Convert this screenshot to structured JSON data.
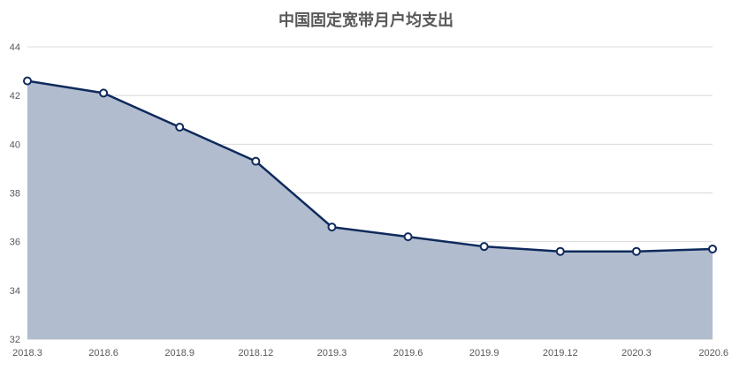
{
  "chart_data": {
    "type": "area",
    "title": "中国固定宽带月户均支出",
    "xlabel": "",
    "ylabel": "",
    "categories": [
      "2018.3",
      "2018.6",
      "2018.9",
      "2018.12",
      "2019.3",
      "2019.6",
      "2019.9",
      "2019.12",
      "2020.3",
      "2020.6"
    ],
    "series": [
      {
        "values": [
          42.6,
          42.1,
          40.7,
          39.3,
          36.6,
          36.2,
          35.8,
          35.6,
          35.6,
          35.7
        ]
      }
    ],
    "ylim": [
      32,
      44
    ],
    "yticks": [
      "32",
      "34",
      "36",
      "38",
      "40",
      "42",
      "44"
    ],
    "grid": true,
    "legend": "none",
    "colors": {
      "fill": "#b1bccf",
      "line": "#0f2a5c",
      "marker_fill": "#ffffff",
      "grid": "#d9d9d9",
      "axis": "#bfbfbf",
      "title": "#595959",
      "text": "#595959"
    }
  }
}
